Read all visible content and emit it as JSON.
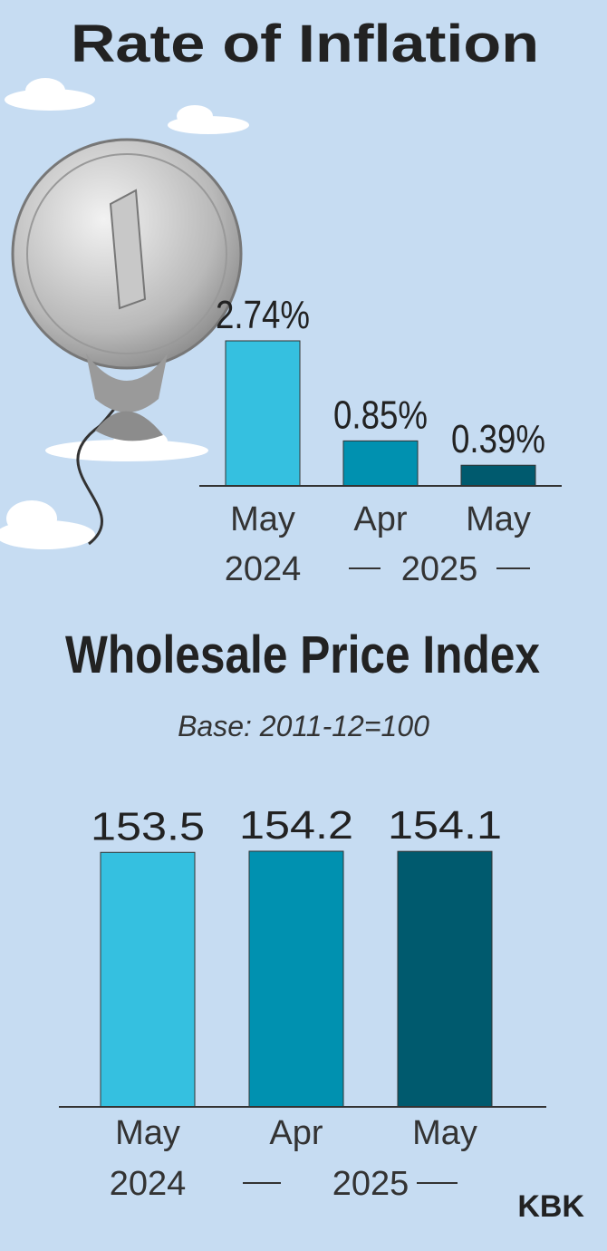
{
  "chart_data": [
    {
      "type": "bar",
      "title": "Rate of Inflation",
      "categories": [
        "May",
        "Apr",
        "May"
      ],
      "years": [
        "2024",
        "2025"
      ],
      "values": [
        2.74,
        0.85,
        0.39
      ],
      "value_labels": [
        "2.74%",
        "0.85%",
        "0.39%"
      ],
      "colors": [
        "#35c0e0",
        "#0091b0",
        "#005a6e"
      ]
    },
    {
      "type": "bar",
      "title": "Wholesale Price Index",
      "subtitle": "Base: 2011-12=100",
      "categories": [
        "May",
        "Apr",
        "May"
      ],
      "years": [
        "2024",
        "2025"
      ],
      "values": [
        153.5,
        154.2,
        154.1
      ],
      "colors": [
        "#35c0e0",
        "#0091b0",
        "#005a6e"
      ]
    }
  ],
  "credit": "KBK"
}
